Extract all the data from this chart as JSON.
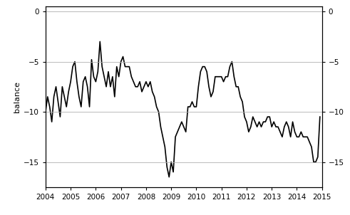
{
  "title": "",
  "ylabel_left": "balance",
  "ylim": [
    -17.5,
    0.5
  ],
  "yticks": [
    0,
    -5,
    -10,
    -15
  ],
  "xlim": [
    2004.0,
    2015.0
  ],
  "xticks": [
    2004,
    2005,
    2006,
    2007,
    2008,
    2009,
    2010,
    2011,
    2012,
    2013,
    2014,
    2015
  ],
  "line_color": "#000000",
  "line_width": 1.2,
  "background_color": "#ffffff",
  "grid_color": "#b0b0b0",
  "dates": [
    2004.0,
    2004.083,
    2004.167,
    2004.25,
    2004.333,
    2004.417,
    2004.5,
    2004.583,
    2004.667,
    2004.75,
    2004.833,
    2004.917,
    2005.0,
    2005.083,
    2005.167,
    2005.25,
    2005.333,
    2005.417,
    2005.5,
    2005.583,
    2005.667,
    2005.75,
    2005.833,
    2005.917,
    2006.0,
    2006.083,
    2006.167,
    2006.25,
    2006.333,
    2006.417,
    2006.5,
    2006.583,
    2006.667,
    2006.75,
    2006.833,
    2006.917,
    2007.0,
    2007.083,
    2007.167,
    2007.25,
    2007.333,
    2007.417,
    2007.5,
    2007.583,
    2007.667,
    2007.75,
    2007.833,
    2007.917,
    2008.0,
    2008.083,
    2008.167,
    2008.25,
    2008.333,
    2008.417,
    2008.5,
    2008.583,
    2008.667,
    2008.75,
    2008.833,
    2008.917,
    2009.0,
    2009.083,
    2009.167,
    2009.25,
    2009.333,
    2009.417,
    2009.5,
    2009.583,
    2009.667,
    2009.75,
    2009.833,
    2009.917,
    2010.0,
    2010.083,
    2010.167,
    2010.25,
    2010.333,
    2010.417,
    2010.5,
    2010.583,
    2010.667,
    2010.75,
    2010.833,
    2010.917,
    2011.0,
    2011.083,
    2011.167,
    2011.25,
    2011.333,
    2011.417,
    2011.5,
    2011.583,
    2011.667,
    2011.75,
    2011.833,
    2011.917,
    2012.0,
    2012.083,
    2012.167,
    2012.25,
    2012.333,
    2012.417,
    2012.5,
    2012.583,
    2012.667,
    2012.75,
    2012.833,
    2012.917,
    2013.0,
    2013.083,
    2013.167,
    2013.25,
    2013.333,
    2013.417,
    2013.5,
    2013.583,
    2013.667,
    2013.75,
    2013.833,
    2013.917,
    2014.0,
    2014.083,
    2014.167,
    2014.25,
    2014.333,
    2014.417,
    2014.5,
    2014.583,
    2014.667,
    2014.75,
    2014.833,
    2014.917
  ],
  "values": [
    -10.0,
    -8.5,
    -9.5,
    -11.0,
    -8.5,
    -7.5,
    -9.0,
    -10.5,
    -7.5,
    -8.5,
    -9.5,
    -8.0,
    -7.0,
    -5.5,
    -5.0,
    -7.0,
    -8.5,
    -9.5,
    -7.0,
    -6.5,
    -7.5,
    -9.5,
    -4.8,
    -6.5,
    -7.0,
    -6.0,
    -3.0,
    -5.5,
    -6.5,
    -7.5,
    -6.0,
    -7.5,
    -6.5,
    -8.5,
    -5.5,
    -6.5,
    -5.0,
    -4.5,
    -5.5,
    -5.5,
    -5.5,
    -6.5,
    -7.0,
    -7.5,
    -7.5,
    -7.0,
    -8.0,
    -7.5,
    -7.0,
    -7.5,
    -7.0,
    -8.0,
    -8.5,
    -9.5,
    -10.0,
    -11.5,
    -12.5,
    -13.5,
    -15.5,
    -16.5,
    -15.0,
    -16.0,
    -12.5,
    -12.0,
    -11.5,
    -11.0,
    -11.5,
    -12.0,
    -9.5,
    -9.5,
    -9.0,
    -9.5,
    -9.5,
    -7.5,
    -6.0,
    -5.5,
    -5.5,
    -6.0,
    -7.5,
    -8.5,
    -8.0,
    -6.5,
    -6.5,
    -6.5,
    -6.5,
    -7.0,
    -6.5,
    -6.5,
    -5.5,
    -5.0,
    -6.5,
    -7.5,
    -7.5,
    -8.5,
    -9.0,
    -10.5,
    -11.0,
    -12.0,
    -11.5,
    -10.5,
    -11.0,
    -11.5,
    -11.0,
    -11.5,
    -11.0,
    -11.0,
    -10.5,
    -10.5,
    -11.5,
    -11.0,
    -11.5,
    -11.5,
    -12.0,
    -12.5,
    -11.5,
    -11.0,
    -11.5,
    -12.5,
    -11.0,
    -12.0,
    -12.5,
    -12.5,
    -12.0,
    -12.5,
    -12.5,
    -12.5,
    -13.0,
    -13.5,
    -15.0,
    -15.0,
    -14.5,
    -10.5
  ]
}
